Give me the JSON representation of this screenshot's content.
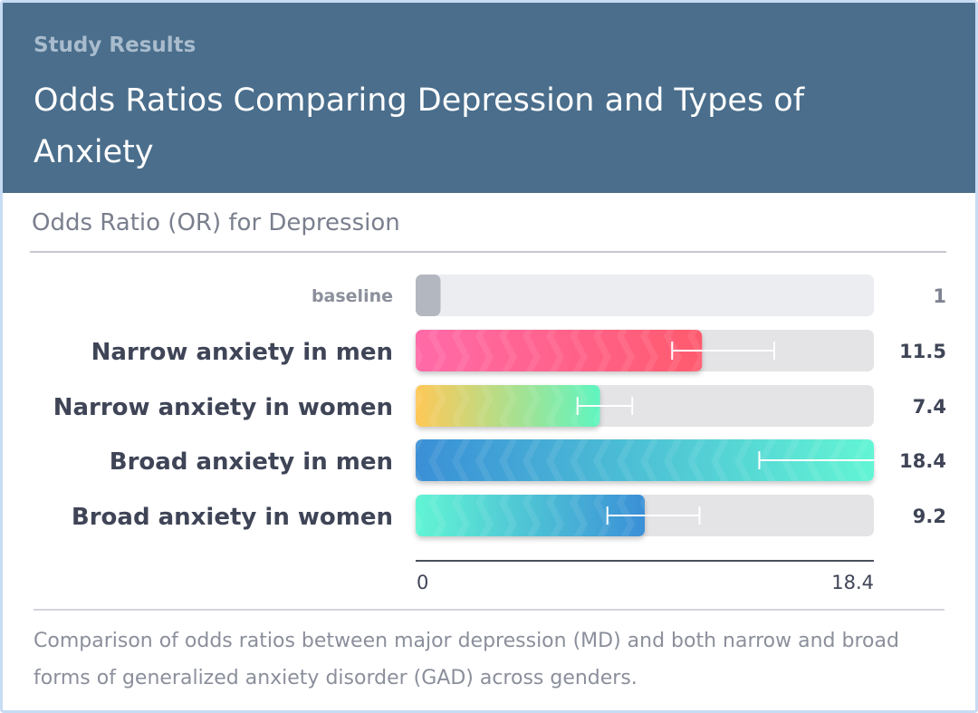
{
  "header": {
    "eyebrow": "Study Results",
    "title": "Odds Ratios Comparing Depression and Types of Anxiety"
  },
  "subheading": "Odds Ratio (OR) for Depression",
  "caption": "Comparison of odds ratios between major depression (MD) and both narrow and broad forms of generalized anxiety disorder (GAD) across genders.",
  "chart_data": {
    "type": "bar",
    "orientation": "horizontal",
    "categories": [
      "baseline",
      "Narrow anxiety in men",
      "Narrow anxiety in women",
      "Broad anxiety in men",
      "Broad anxiety in women"
    ],
    "values": [
      1,
      11.5,
      7.4,
      18.4,
      9.2
    ],
    "value_labels": [
      "1",
      "11.5",
      "7.4",
      "18.4",
      "9.2"
    ],
    "error_intervals": [
      null,
      [
        10.3,
        14.4
      ],
      [
        6.5,
        8.7
      ],
      [
        13.8,
        18.5
      ],
      [
        7.7,
        11.4
      ]
    ],
    "xlim": [
      0,
      18.4
    ],
    "x_tick_labels": [
      "0",
      "18.4"
    ],
    "bar_colors": [
      [
        "#b3b7c0",
        "#b3b7c0"
      ],
      [
        "#ff6aa8",
        "#ff5a6e"
      ],
      [
        "#ffc857",
        "#5ff5c0"
      ],
      [
        "#3a8fd6",
        "#62f5d4"
      ],
      [
        "#62f5d4",
        "#3a8fd6"
      ]
    ],
    "track_color": "#e4e4e6",
    "baseline_track_color": "#ecedf0",
    "grid": false
  }
}
